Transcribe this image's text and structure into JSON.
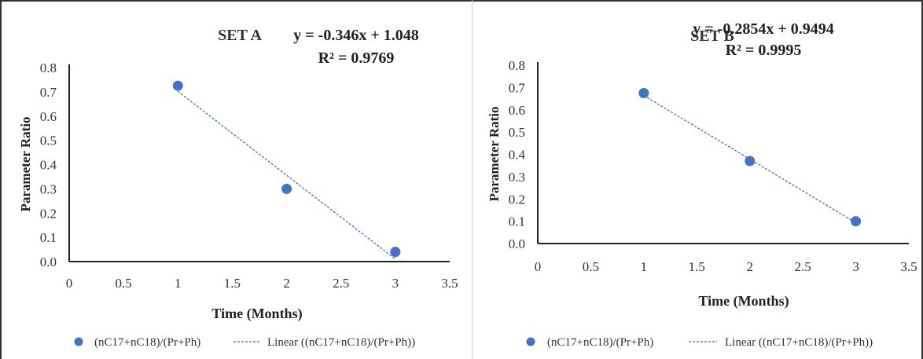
{
  "chart_data": [
    {
      "type": "scatter",
      "title": "SET A",
      "equation": "y = -0.346x + 1.048",
      "r_squared": "R² = 0.9769",
      "xlabel": "Time (Months)",
      "ylabel": "Parameter Ratio",
      "xlim": [
        0,
        3.5
      ],
      "ylim": [
        0,
        0.8
      ],
      "xticks": [
        "0",
        "0.5",
        "1",
        "1.5",
        "2",
        "2.5",
        "3",
        "3.5"
      ],
      "yticks": [
        "0.0",
        "0.1",
        "0.2",
        "0.3",
        "0.4",
        "0.5",
        "0.6",
        "0.7",
        "0.8"
      ],
      "series": [
        {
          "name": "(nC17+nC18)/(Pr+Ph)",
          "x": [
            1,
            2,
            3
          ],
          "y": [
            0.725,
            0.3,
            0.04
          ]
        }
      ],
      "trendline": {
        "name": "Linear ((nC17+nC18)/(Pr+Ph))",
        "slope": -0.346,
        "intercept": 1.048,
        "x_range": [
          1,
          3
        ]
      },
      "marker_color": "#4472c4",
      "grid": false,
      "legend": "bottom"
    },
    {
      "type": "scatter",
      "title": "SET B",
      "equation": "y = -0.2854x + 0.9494",
      "r_squared": "R² = 0.9995",
      "xlabel": "Time (Months)",
      "ylabel": "Parameter Ratio",
      "xlim": [
        0,
        3.5
      ],
      "ylim": [
        0,
        0.8
      ],
      "xticks": [
        "0",
        "0.5",
        "1",
        "1.5",
        "2",
        "2.5",
        "3",
        "3.5"
      ],
      "yticks": [
        "0.0",
        "0.1",
        "0.2",
        "0.3",
        "0.4",
        "0.5",
        "0.6",
        "0.7",
        "0.8"
      ],
      "series": [
        {
          "name": "(nC17+nC18)/(Pr+Ph)",
          "x": [
            1,
            2,
            3
          ],
          "y": [
            0.675,
            0.37,
            0.1
          ]
        }
      ],
      "trendline": {
        "name": "Linear ((nC17+nC18)/(Pr+Ph))",
        "slope": -0.2854,
        "intercept": 0.9494,
        "x_range": [
          1,
          3
        ]
      },
      "marker_color": "#4472c4",
      "grid": false,
      "legend": "bottom"
    }
  ]
}
